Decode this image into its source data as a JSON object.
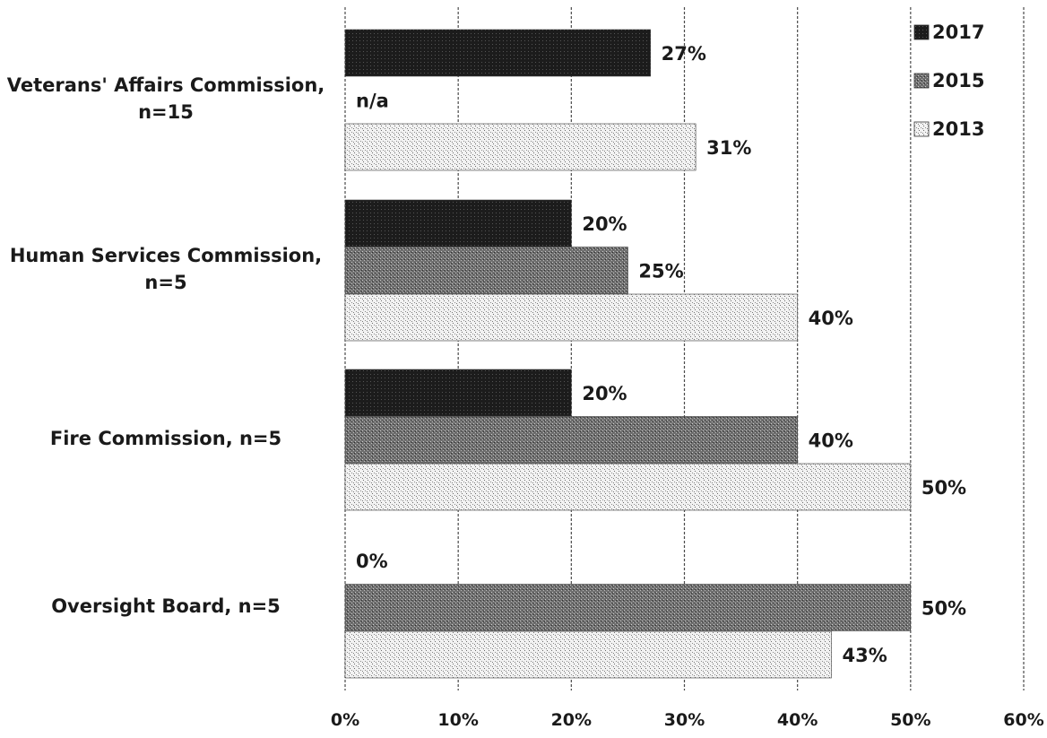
{
  "chart_data": {
    "type": "bar",
    "orientation": "horizontal",
    "title": "",
    "xlabel": "",
    "ylabel": "",
    "xlim": [
      0,
      60
    ],
    "x_ticks": [
      "0%",
      "10%",
      "20%",
      "30%",
      "40%",
      "50%",
      "60%"
    ],
    "grid": true,
    "legend_position": "top-right",
    "categories": [
      {
        "line1": "Veterans' Affairs Commission,",
        "line2": "n=15"
      },
      {
        "line1": "Human Services Commission,",
        "line2": "n=5"
      },
      {
        "line1": "Fire Commission, n=5",
        "line2": ""
      },
      {
        "line1": "Oversight Board, n=5",
        "line2": ""
      }
    ],
    "series": [
      {
        "name": "2017",
        "color": "#1f1f1f",
        "values": [
          27,
          20,
          20,
          0
        ],
        "labels": [
          "27%",
          "20%",
          "20%",
          "0%"
        ]
      },
      {
        "name": "2015",
        "color": "#7a7a7a",
        "values": [
          null,
          25,
          40,
          50
        ],
        "labels": [
          "n/a",
          "25%",
          "40%",
          "50%"
        ]
      },
      {
        "name": "2013",
        "color": "#d4d4d4",
        "values": [
          31,
          40,
          50,
          43
        ],
        "labels": [
          "31%",
          "40%",
          "50%",
          "43%"
        ]
      }
    ]
  }
}
